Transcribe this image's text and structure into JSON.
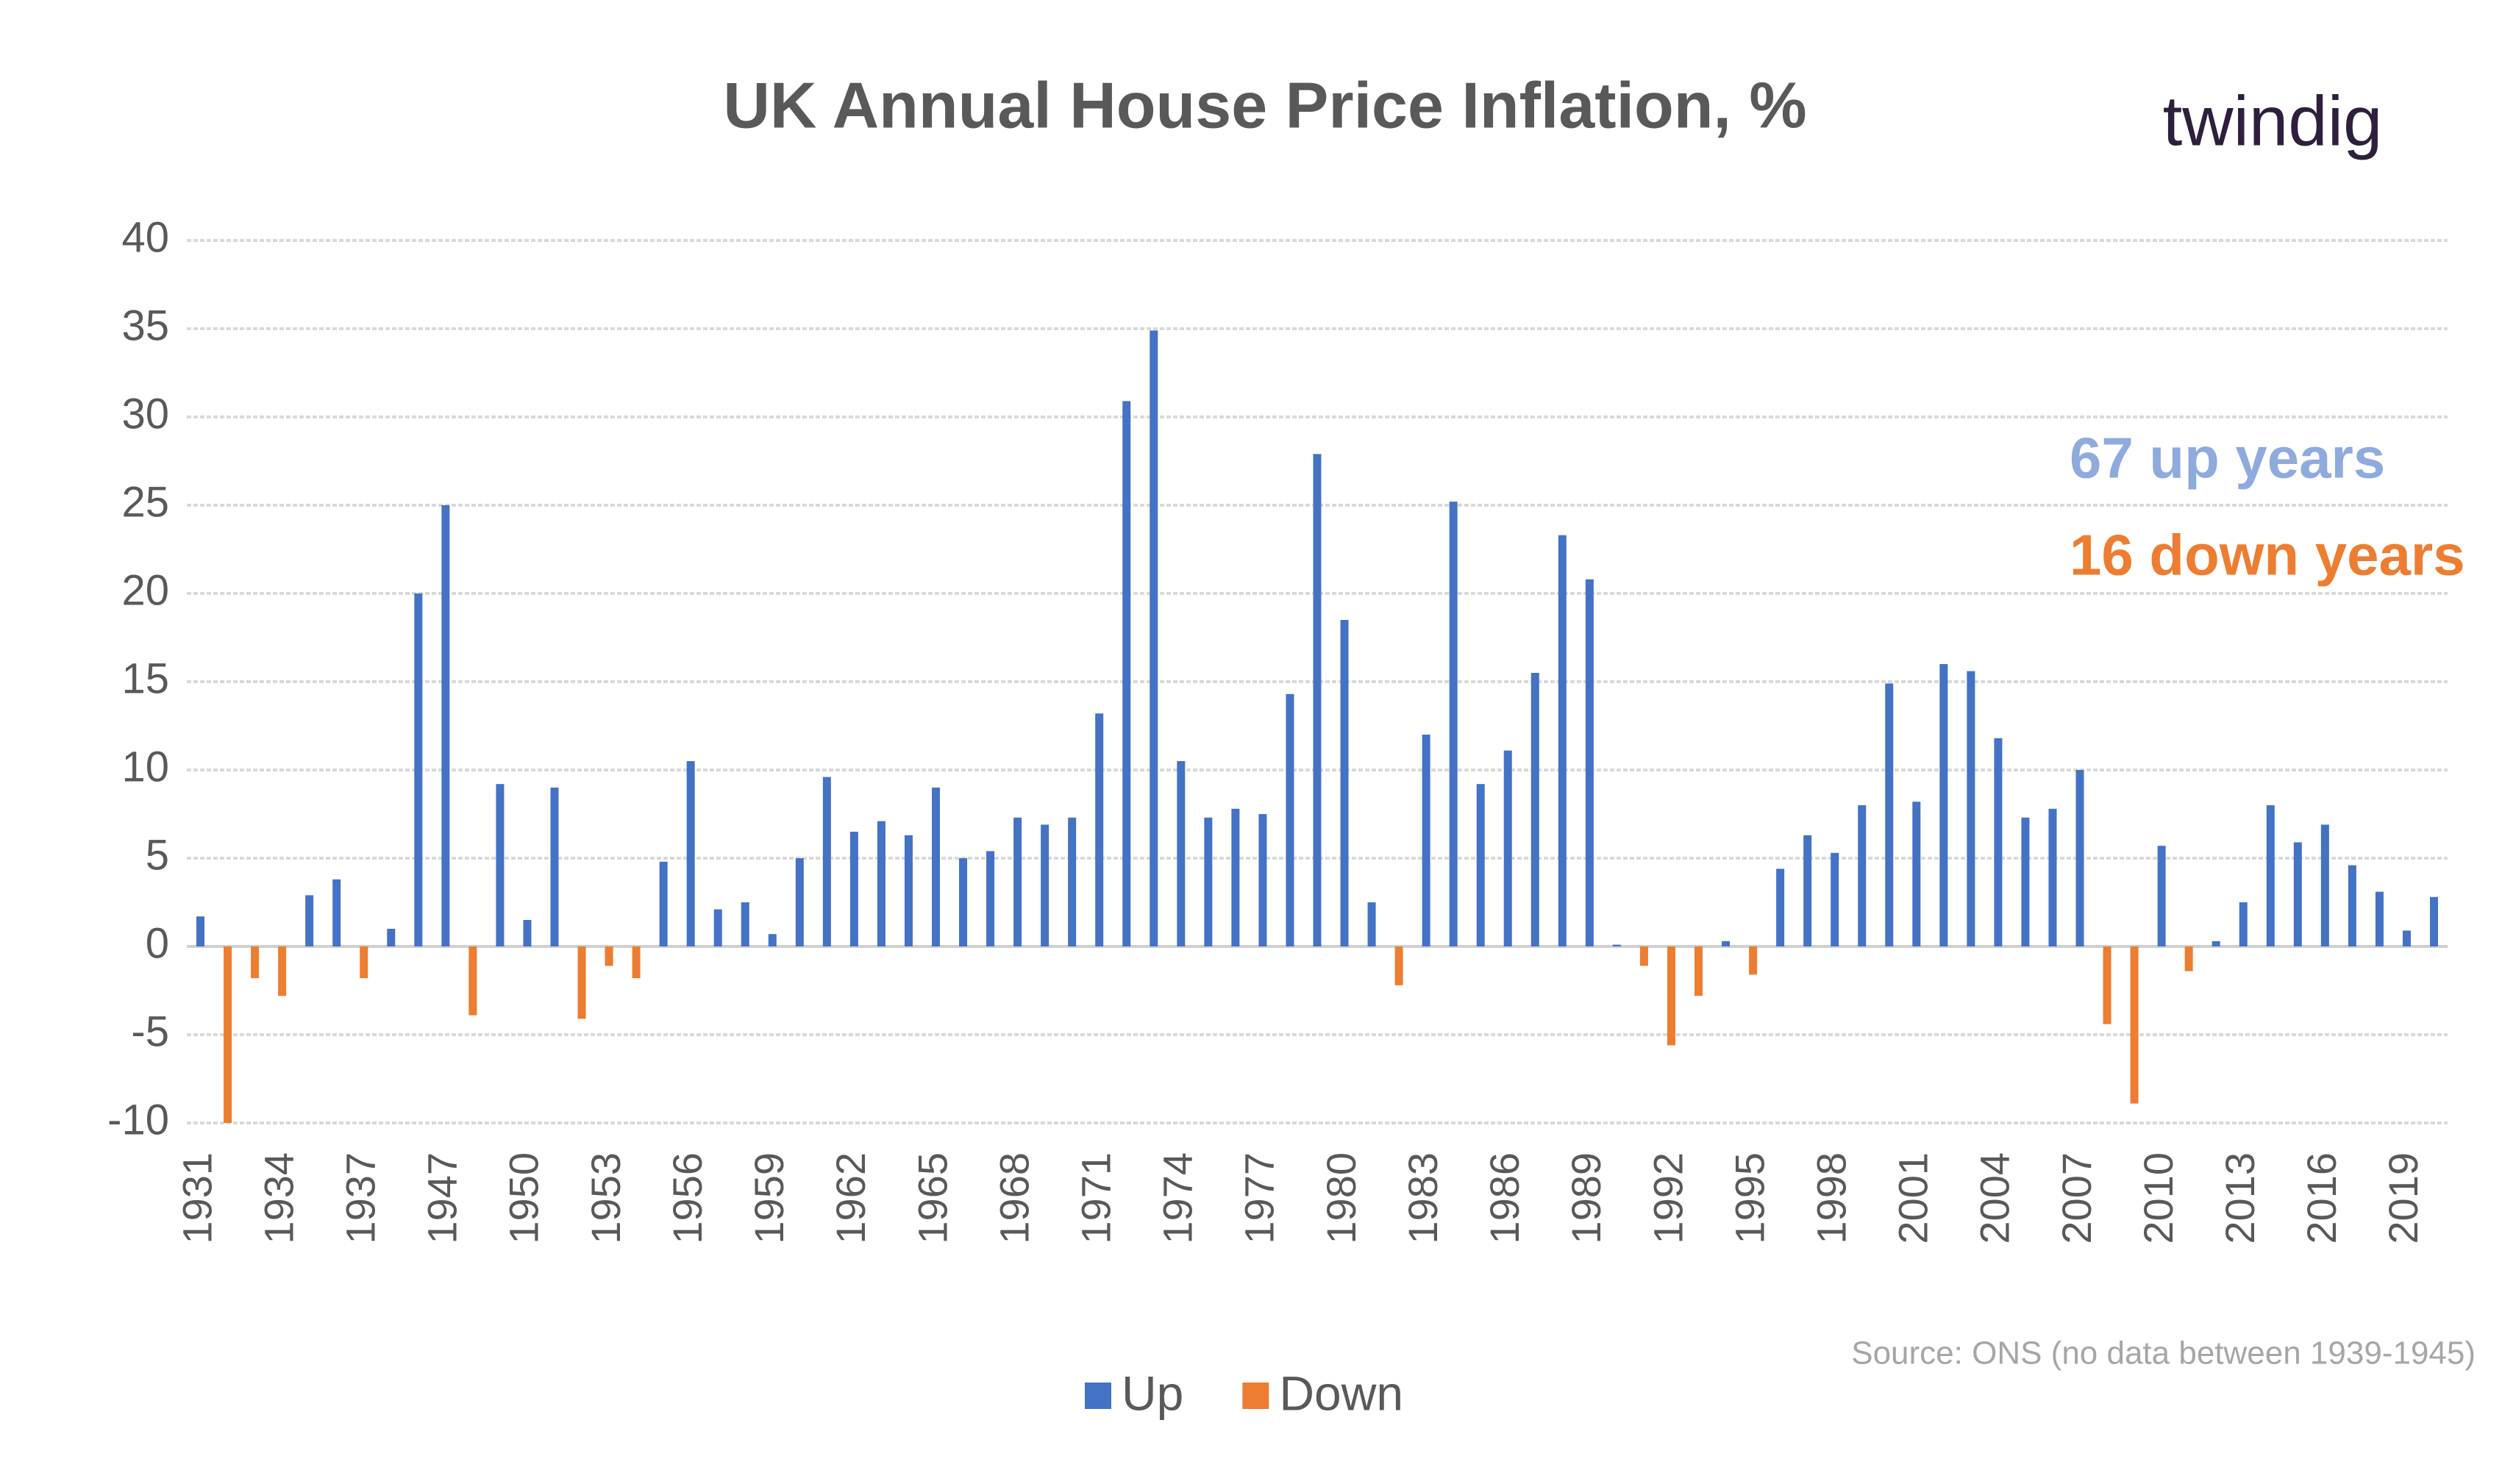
{
  "chart_data": {
    "type": "bar",
    "title": "UK Annual House Price Inflation, %",
    "brand": "twindig",
    "annotations": [
      "67 up years",
      "16 down years"
    ],
    "source": "Source: ONS (no data between 1939-1945)",
    "categories": [
      "1931",
      null,
      null,
      "1934",
      null,
      null,
      "1937",
      null,
      null,
      "1947",
      null,
      null,
      "1950",
      null,
      null,
      "1953",
      null,
      null,
      "1956",
      null,
      null,
      "1959",
      null,
      null,
      "1962",
      null,
      null,
      "1965",
      null,
      null,
      "1968",
      null,
      null,
      "1971",
      null,
      null,
      "1974",
      null,
      null,
      "1977",
      null,
      null,
      "1980",
      null,
      null,
      "1983",
      null,
      null,
      "1986",
      null,
      null,
      "1989",
      null,
      null,
      "1992",
      null,
      null,
      "1995",
      null,
      null,
      "1998",
      null,
      null,
      "2001",
      null,
      null,
      "2004",
      null,
      null,
      "2007",
      null,
      null,
      "2010",
      null,
      null,
      "2013",
      null,
      null,
      "2016",
      null,
      null,
      "2019",
      null
    ],
    "series": [
      {
        "name": "Up",
        "color": "#4472c4",
        "values": [
          1.7,
          null,
          null,
          null,
          2.9,
          3.8,
          null,
          1.0,
          20,
          25,
          null,
          9.2,
          1.5,
          9.0,
          null,
          null,
          null,
          4.8,
          10.5,
          2.1,
          2.5,
          0.7,
          5.0,
          9.6,
          6.5,
          7.1,
          6.3,
          9.0,
          5.0,
          5.4,
          7.3,
          6.9,
          7.3,
          13.2,
          30.9,
          34.9,
          10.5,
          7.3,
          7.8,
          7.5,
          14.3,
          27.9,
          18.5,
          2.5,
          null,
          12.0,
          25.2,
          9.2,
          11.1,
          15.5,
          23.3,
          20.8,
          0.1,
          null,
          null,
          null,
          0.3,
          null,
          4.4,
          6.3,
          5.3,
          8.0,
          14.9,
          8.2,
          16.0,
          15.6,
          11.8,
          7.3,
          7.8,
          10.0,
          null,
          null,
          5.7,
          null,
          0.3,
          2.5,
          8.0,
          5.9,
          6.9,
          4.6,
          3.1,
          0.9,
          2.8
        ]
      },
      {
        "name": "Down",
        "color": "#ed7d31",
        "values": [
          null,
          -10,
          -1.8,
          -2.8,
          null,
          null,
          -1.8,
          null,
          null,
          null,
          -3.9,
          null,
          null,
          null,
          -4.1,
          -1.1,
          -1.8,
          null,
          null,
          null,
          null,
          null,
          null,
          null,
          null,
          null,
          null,
          null,
          null,
          null,
          null,
          null,
          null,
          null,
          null,
          null,
          null,
          null,
          null,
          null,
          null,
          null,
          null,
          null,
          -2.2,
          null,
          null,
          null,
          null,
          null,
          null,
          null,
          null,
          -1.1,
          -5.6,
          -2.8,
          null,
          -1.6,
          null,
          null,
          null,
          null,
          null,
          null,
          null,
          null,
          null,
          null,
          null,
          null,
          -4.4,
          -8.9,
          null,
          -1.4,
          null,
          null,
          null,
          null,
          null,
          null,
          null,
          null,
          null
        ]
      }
    ],
    "ylim": [
      -10,
      40
    ],
    "yticks": [
      -10,
      -5,
      0,
      5,
      10,
      15,
      20,
      25,
      30,
      35,
      40
    ],
    "grid": true,
    "legend": "bottom"
  }
}
